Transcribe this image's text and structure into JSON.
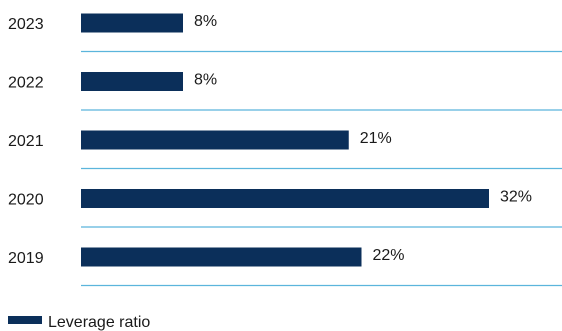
{
  "chart_data": {
    "type": "bar",
    "orientation": "horizontal",
    "categories": [
      "2023",
      "2022",
      "2021",
      "2020",
      "2019"
    ],
    "series": [
      {
        "name": "Leverage ratio",
        "values": [
          8,
          8,
          21,
          32,
          22
        ],
        "color": "#0b2f5a"
      }
    ],
    "data_labels": [
      "8%",
      "8%",
      "21%",
      "32%",
      "22%"
    ],
    "xlim": [
      0,
      32
    ],
    "grid": false,
    "separator_color": "#5bb5dc",
    "legend_position": "bottom-left"
  }
}
